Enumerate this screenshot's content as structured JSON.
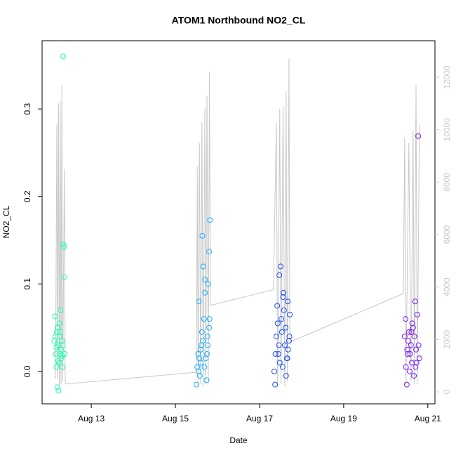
{
  "chart_data": {
    "type": "scatter",
    "title": "ATOM1 Northbound NO2_CL",
    "xlabel": "Date",
    "ylabel": "NO2_CL",
    "xlim": [
      11.83,
      21.17
    ],
    "xticks": [
      {
        "value": 13,
        "label": "Aug 13"
      },
      {
        "value": 15,
        "label": "Aug 15"
      },
      {
        "value": 17,
        "label": "Aug 17"
      },
      {
        "value": 19,
        "label": "Aug 19"
      },
      {
        "value": 21,
        "label": "Aug 21"
      }
    ],
    "ylim": [
      -0.037,
      0.378
    ],
    "yticks": [
      {
        "value": 0,
        "label": "0.0"
      },
      0.1,
      0.2,
      0.3
    ],
    "y2lim": [
      -455,
      13394
    ],
    "y2ticks": [
      0,
      2000,
      4000,
      6000,
      8000,
      10000,
      12000
    ],
    "y2color": "#c8c8c8",
    "series": [
      {
        "color": "#1affb0",
        "x": [
          12.12,
          12.14,
          12.15,
          12.16,
          12.17,
          12.18,
          12.19,
          12.2,
          12.21,
          12.22,
          12.23,
          12.24,
          12.25,
          12.26,
          12.27,
          12.28,
          12.29,
          12.3,
          12.31,
          12.32,
          12.33,
          12.34,
          12.35,
          12.36,
          12.37,
          12.17,
          12.2,
          12.25,
          12.3
        ],
        "values": [
          0.035,
          0.063,
          0.04,
          0.02,
          0.005,
          0.045,
          -0.018,
          0.05,
          0.03,
          -0.022,
          0.01,
          0.055,
          0.02,
          0.045,
          0.07,
          0.025,
          0.015,
          0.035,
          0.005,
          0.03,
          0.36,
          0.145,
          0.142,
          0.108,
          0.02,
          0.028,
          0.012,
          0.04,
          0.018
        ]
      },
      {
        "color": "#1ab2ff",
        "x": [
          15.5,
          15.52,
          15.54,
          15.56,
          15.58,
          15.6,
          15.62,
          15.64,
          15.66,
          15.68,
          15.7,
          15.72,
          15.74,
          15.76,
          15.78,
          15.8,
          15.82,
          15.55,
          15.6,
          15.65,
          15.7,
          15.75,
          15.8,
          15.57,
          15.63,
          15.69,
          15.77,
          15.81
        ],
        "values": [
          -0.015,
          0.005,
          0.02,
          0.08,
          -0.005,
          0.01,
          0.03,
          0.155,
          0.12,
          0.06,
          0.105,
          0.015,
          -0.01,
          0.04,
          0.1,
          0.05,
          0.173,
          0.0,
          0.025,
          0.035,
          0.09,
          0.02,
          0.137,
          0.015,
          0.045,
          0.005,
          0.03,
          0.06
        ]
      },
      {
        "color": "#1a4dff",
        "x": [
          17.35,
          17.37,
          17.4,
          17.42,
          17.45,
          17.47,
          17.5,
          17.52,
          17.55,
          17.57,
          17.6,
          17.62,
          17.65,
          17.67,
          17.7,
          17.72,
          17.38,
          17.43,
          17.48,
          17.53,
          17.58,
          17.63,
          17.68,
          17.71,
          17.46,
          17.56,
          17.66
        ],
        "values": [
          0.0,
          -0.015,
          0.04,
          0.075,
          0.02,
          0.11,
          0.12,
          0.06,
          0.005,
          0.09,
          0.03,
          0.05,
          0.015,
          0.08,
          0.035,
          0.065,
          0.02,
          0.055,
          0.01,
          0.045,
          0.07,
          -0.005,
          0.025,
          0.04,
          0.03,
          0.085,
          0.015
        ]
      },
      {
        "color": "#7a1aff",
        "x": [
          20.45,
          20.47,
          20.5,
          20.52,
          20.55,
          20.57,
          20.6,
          20.62,
          20.65,
          20.67,
          20.7,
          20.72,
          20.75,
          20.77,
          20.8,
          20.48,
          20.53,
          20.58,
          20.63,
          20.68,
          20.73,
          20.78,
          20.51,
          20.61,
          20.71
        ],
        "values": [
          0.04,
          0.06,
          -0.015,
          0.02,
          0.045,
          0.0,
          0.03,
          0.01,
          0.05,
          -0.005,
          0.08,
          0.025,
          0.065,
          0.269,
          0.015,
          0.005,
          0.035,
          0.02,
          0.055,
          0.04,
          0.01,
          0.03,
          0.025,
          0.045,
          0.005
        ]
      },
      {
        "color": "#c8c8c8",
        "axis": "y2",
        "line": true,
        "x": [
          12.15,
          12.18,
          12.2,
          12.22,
          12.24,
          12.26,
          12.28,
          12.3,
          12.32,
          12.36,
          12.38,
          15.5,
          15.52,
          15.54,
          15.57,
          15.6,
          15.63,
          15.66,
          15.7,
          15.72,
          15.75,
          15.78,
          15.81,
          15.83,
          17.33,
          17.4,
          17.43,
          17.48,
          17.51,
          17.56,
          17.6,
          17.63,
          17.66,
          17.7,
          17.72,
          20.42,
          20.45,
          20.48,
          20.55,
          20.6,
          20.65,
          20.68,
          20.72,
          20.75,
          20.8
        ],
        "values": [
          500,
          10200,
          500,
          11000,
          200,
          11100,
          300,
          11700,
          400,
          8500,
          300,
          750,
          8600,
          200,
          9500,
          300,
          10300,
          200,
          10800,
          300,
          11300,
          400,
          12200,
          3300,
          3900,
          10300,
          200,
          10800,
          300,
          10900,
          200,
          11500,
          400,
          12700,
          1900,
          3750,
          9700,
          300,
          9500,
          400,
          10000,
          300,
          11700,
          300,
          10200
        ]
      }
    ]
  }
}
